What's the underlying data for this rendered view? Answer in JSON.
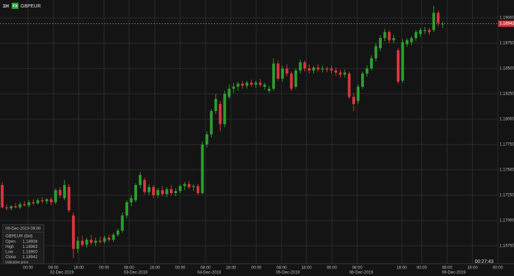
{
  "chart_data": {
    "type": "candlestick",
    "interval": "1H",
    "badge": "FX",
    "symbol": "GBPEUR",
    "up_color": "#2e9e2e",
    "down_color": "#d9363e",
    "grid": true,
    "xlim": [
      -0.5,
      111.5
    ],
    "ylim": [
      1.16574,
      1.19176
    ],
    "yticks": [
      {
        "value": 1.1675,
        "label": "1.16750"
      },
      {
        "value": 1.17,
        "label": "1.17000"
      },
      {
        "value": 1.1725,
        "label": "1.17250"
      },
      {
        "value": 1.175,
        "label": "1.17500"
      },
      {
        "value": 1.1775,
        "label": "1.17750"
      },
      {
        "value": 1.18,
        "label": "1.18000"
      },
      {
        "value": 1.1825,
        "label": "1.18250"
      },
      {
        "value": 1.185,
        "label": "1.18500"
      },
      {
        "value": 1.1875,
        "label": "1.18750"
      },
      {
        "value": 1.19,
        "label": "1.19000"
      }
    ],
    "xticks": [
      {
        "value": 5.8,
        "label": "00:00"
      },
      {
        "value": 11.5,
        "label": "08:00"
      },
      {
        "value": 17.2,
        "label": "16:00"
      },
      {
        "value": 22.9,
        "label": "00:00"
      },
      {
        "value": 28.5,
        "label": "08:00"
      },
      {
        "value": 34.3,
        "label": "16:00"
      },
      {
        "value": 40,
        "label": "00:00"
      },
      {
        "value": 45.7,
        "label": "08:00"
      },
      {
        "value": 51.4,
        "label": "16:00"
      },
      {
        "value": 57.1,
        "label": "00:00"
      },
      {
        "value": 62.8,
        "label": "08:00"
      },
      {
        "value": 68.4,
        "label": "16:00"
      },
      {
        "value": 74.1,
        "label": "00:00"
      },
      {
        "value": 79.8,
        "label": "08:00"
      },
      {
        "value": 89.8,
        "label": "16:00"
      },
      {
        "value": 94.3,
        "label": "00:00"
      },
      {
        "value": 100,
        "label": "08:00"
      },
      {
        "value": 105.7,
        "label": "16:00"
      },
      {
        "value": 111.4,
        "label": "00:00"
      }
    ],
    "date_ticks": [
      {
        "value": 13.4,
        "label": "02-Dec-2019"
      },
      {
        "value": 30,
        "label": "03-Dec-2019"
      },
      {
        "value": 46.5,
        "label": "04-Dec-2019"
      },
      {
        "value": 64.2,
        "label": "05-Dec-2019"
      },
      {
        "value": 80.7,
        "label": "06-Dec-2019"
      },
      {
        "value": 101.5,
        "label": "09-Dec-2019"
      }
    ],
    "candles": [
      [
        1.1735,
        1.1738,
        1.1712,
        1.1713
      ],
      [
        1.1713,
        1.1716,
        1.171,
        1.1712
      ],
      [
        1.1712,
        1.1715,
        1.171,
        1.1714
      ],
      [
        1.1714,
        1.1717,
        1.1712,
        1.1713
      ],
      [
        1.1713,
        1.1718,
        1.1711,
        1.1716
      ],
      [
        1.1716,
        1.1719,
        1.1714,
        1.1715
      ],
      [
        1.1715,
        1.172,
        1.1713,
        1.1718
      ],
      [
        1.1718,
        1.1721,
        1.1715,
        1.1717
      ],
      [
        1.1717,
        1.1722,
        1.1716,
        1.172
      ],
      [
        1.172,
        1.1723,
        1.1717,
        1.1719
      ],
      [
        1.1719,
        1.1722,
        1.1716,
        1.1721
      ],
      [
        1.1721,
        1.1723,
        1.1715,
        1.1718
      ],
      [
        1.1718,
        1.1732,
        1.1716,
        1.173
      ],
      [
        1.173,
        1.1733,
        1.1722,
        1.1725
      ],
      [
        1.1722,
        1.174,
        1.172,
        1.1735
      ],
      [
        1.1733,
        1.1736,
        1.1708,
        1.171
      ],
      [
        1.1705,
        1.1708,
        1.1663,
        1.1672
      ],
      [
        1.1672,
        1.1684,
        1.1668,
        1.168
      ],
      [
        1.168,
        1.1685,
        1.1674,
        1.1676
      ],
      [
        1.1676,
        1.1683,
        1.1673,
        1.1681
      ],
      [
        1.1681,
        1.1686,
        1.1676,
        1.1678
      ],
      [
        1.1678,
        1.1683,
        1.1675,
        1.168
      ],
      [
        1.168,
        1.1684,
        1.1677,
        1.1679
      ],
      [
        1.1679,
        1.1685,
        1.1677,
        1.1683
      ],
      [
        1.1683,
        1.1686,
        1.1679,
        1.1681
      ],
      [
        1.1681,
        1.1688,
        1.1679,
        1.1686
      ],
      [
        1.1686,
        1.1692,
        1.1684,
        1.169
      ],
      [
        1.169,
        1.1708,
        1.1688,
        1.1705
      ],
      [
        1.1705,
        1.172,
        1.1702,
        1.1718
      ],
      [
        1.1718,
        1.1725,
        1.1714,
        1.1722
      ],
      [
        1.172,
        1.1737,
        1.1718,
        1.1735
      ],
      [
        1.1735,
        1.1748,
        1.1732,
        1.1745
      ],
      [
        1.174,
        1.1742,
        1.1726,
        1.1728
      ],
      [
        1.1728,
        1.1736,
        1.1725,
        1.1733
      ],
      [
        1.1733,
        1.1735,
        1.1722,
        1.1725
      ],
      [
        1.1725,
        1.1732,
        1.1722,
        1.173
      ],
      [
        1.173,
        1.1734,
        1.1724,
        1.1726
      ],
      [
        1.1726,
        1.1733,
        1.1723,
        1.1731
      ],
      [
        1.1731,
        1.1735,
        1.1725,
        1.1727
      ],
      [
        1.1727,
        1.1732,
        1.1724,
        1.1729
      ],
      [
        1.1729,
        1.1736,
        1.1727,
        1.1734
      ],
      [
        1.1734,
        1.1738,
        1.173,
        1.1736
      ],
      [
        1.1736,
        1.1739,
        1.1731,
        1.1733
      ],
      [
        1.1733,
        1.1736,
        1.1729,
        1.1734
      ],
      [
        1.1734,
        1.1736,
        1.1725,
        1.1727
      ],
      [
        1.1727,
        1.1778,
        1.1726,
        1.1775
      ],
      [
        1.1775,
        1.1788,
        1.1772,
        1.1785
      ],
      [
        1.1785,
        1.181,
        1.1782,
        1.1808
      ],
      [
        1.1808,
        1.1825,
        1.1805,
        1.182
      ],
      [
        1.1815,
        1.1818,
        1.1788,
        1.1795
      ],
      [
        1.1795,
        1.1828,
        1.1792,
        1.1825
      ],
      [
        1.1822,
        1.1834,
        1.182,
        1.183
      ],
      [
        1.183,
        1.1836,
        1.1826,
        1.1832
      ],
      [
        1.1832,
        1.1837,
        1.1828,
        1.1835
      ],
      [
        1.1835,
        1.1838,
        1.183,
        1.1833
      ],
      [
        1.1833,
        1.1838,
        1.183,
        1.1836
      ],
      [
        1.1836,
        1.1839,
        1.1832,
        1.1834
      ],
      [
        1.1834,
        1.1838,
        1.1831,
        1.1836
      ],
      [
        1.1836,
        1.184,
        1.1832,
        1.1834
      ],
      [
        1.1832,
        1.1836,
        1.1829,
        1.1834
      ],
      [
        1.1828,
        1.1833,
        1.1826,
        1.183
      ],
      [
        1.183,
        1.186,
        1.1828,
        1.1855
      ],
      [
        1.1855,
        1.1858,
        1.1838,
        1.184
      ],
      [
        1.184,
        1.1853,
        1.1837,
        1.185
      ],
      [
        1.185,
        1.1854,
        1.1842,
        1.1845
      ],
      [
        1.1845,
        1.1847,
        1.1828,
        1.183
      ],
      [
        1.1832,
        1.185,
        1.183,
        1.1848
      ],
      [
        1.1848,
        1.1859,
        1.1845,
        1.1856
      ],
      [
        1.1856,
        1.1858,
        1.1847,
        1.185
      ],
      [
        1.185,
        1.1854,
        1.1845,
        1.1848
      ],
      [
        1.1848,
        1.1853,
        1.1845,
        1.1851
      ],
      [
        1.1851,
        1.1854,
        1.1847,
        1.1849
      ],
      [
        1.1849,
        1.1853,
        1.1846,
        1.185
      ],
      [
        1.185,
        1.1852,
        1.1846,
        1.1849
      ],
      [
        1.185,
        1.1853,
        1.1845,
        1.1848
      ],
      [
        1.1848,
        1.1851,
        1.1843,
        1.1846
      ],
      [
        1.1846,
        1.1849,
        1.1841,
        1.1844
      ],
      [
        1.1844,
        1.1849,
        1.1841,
        1.1846
      ],
      [
        1.1845,
        1.1847,
        1.182,
        1.1822
      ],
      [
        1.1822,
        1.1826,
        1.1808,
        1.1815
      ],
      [
        1.1818,
        1.1834,
        1.1815,
        1.1832
      ],
      [
        1.1832,
        1.1847,
        1.183,
        1.1845
      ],
      [
        1.1845,
        1.1853,
        1.1842,
        1.185
      ],
      [
        1.185,
        1.1863,
        1.1848,
        1.186
      ],
      [
        1.186,
        1.1875,
        1.1857,
        1.1872
      ],
      [
        1.187,
        1.1883,
        1.1867,
        1.188
      ],
      [
        1.188,
        1.1889,
        1.1877,
        1.1886
      ],
      [
        1.1886,
        1.1888,
        1.1875,
        1.1878
      ],
      [
        1.1878,
        1.1883,
        1.1875,
        1.188
      ],
      [
        1.1868,
        1.187,
        1.1835,
        1.1837
      ],
      [
        1.1838,
        1.1879,
        1.1836,
        1.1876
      ],
      [
        1.1874,
        1.188,
        1.1871,
        1.1878
      ],
      [
        1.1876,
        1.1882,
        1.1873,
        1.188
      ],
      [
        1.188,
        1.1888,
        1.1877,
        1.1886
      ],
      [
        1.1884,
        1.189,
        1.1881,
        1.1888
      ],
      [
        1.1887,
        1.1891,
        1.1884,
        1.1888
      ],
      [
        1.1888,
        1.189,
        1.1883,
        1.1886
      ],
      [
        1.1888,
        1.1912,
        1.1886,
        1.1905
      ],
      [
        1.1905,
        1.1907,
        1.1892,
        1.1895
      ],
      [
        1.18938,
        1.18963,
        1.189,
        1.18942
      ]
    ],
    "last_price_label": "1.18942",
    "info": {
      "date": "09-Dec-2019 09:00",
      "title": "GBPEUR (Bid)",
      "rows": [
        [
          "Open",
          "1.18938"
        ],
        [
          "High",
          "1.18963"
        ],
        [
          "Low",
          "1.18900"
        ],
        [
          "Close",
          "1.18942"
        ]
      ],
      "note": "Indicative price"
    },
    "clock": "00:27:43"
  }
}
